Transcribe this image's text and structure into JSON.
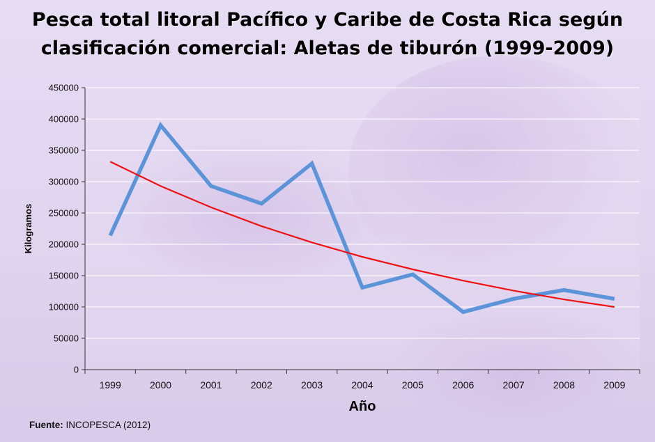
{
  "title_line1": "Pesca total litoral Pacífico y Caribe de Costa Rica según",
  "title_line2": "clasificación comercial: Aletas de tiburón (1999-2009)",
  "source": {
    "label": "Fuente:",
    "text": "INCOPESCA (2012)"
  },
  "colors": {
    "series": "#5b94d8",
    "trend": "#ee1111",
    "grid": "#ffffff",
    "axis": "#333333"
  },
  "chart_data": {
    "type": "line",
    "title": "Pesca total litoral Pacífico y Caribe de Costa Rica según clasificación comercial: Aletas de tiburón (1999-2009)",
    "xlabel": "Año",
    "ylabel": "Kilogramos",
    "categories": [
      "1999",
      "2000",
      "2001",
      "2002",
      "2003",
      "2004",
      "2005",
      "2006",
      "2007",
      "2008",
      "2009"
    ],
    "ylim": [
      0,
      450000
    ],
    "yticks": [
      "0",
      "50000",
      "100000",
      "150000",
      "200000",
      "250000",
      "300000",
      "350000",
      "400000",
      "450000"
    ],
    "grid": true,
    "legend": "none",
    "series": [
      {
        "name": "Aletas de tiburón",
        "values": [
          214000,
          390000,
          293000,
          265000,
          329000,
          131000,
          152000,
          92000,
          113000,
          127000,
          113000
        ]
      },
      {
        "name": "Tendencia",
        "type": "trend",
        "values": [
          332000,
          293000,
          259000,
          229000,
          203000,
          180000,
          160000,
          142000,
          126000,
          112000,
          100000
        ]
      }
    ]
  }
}
